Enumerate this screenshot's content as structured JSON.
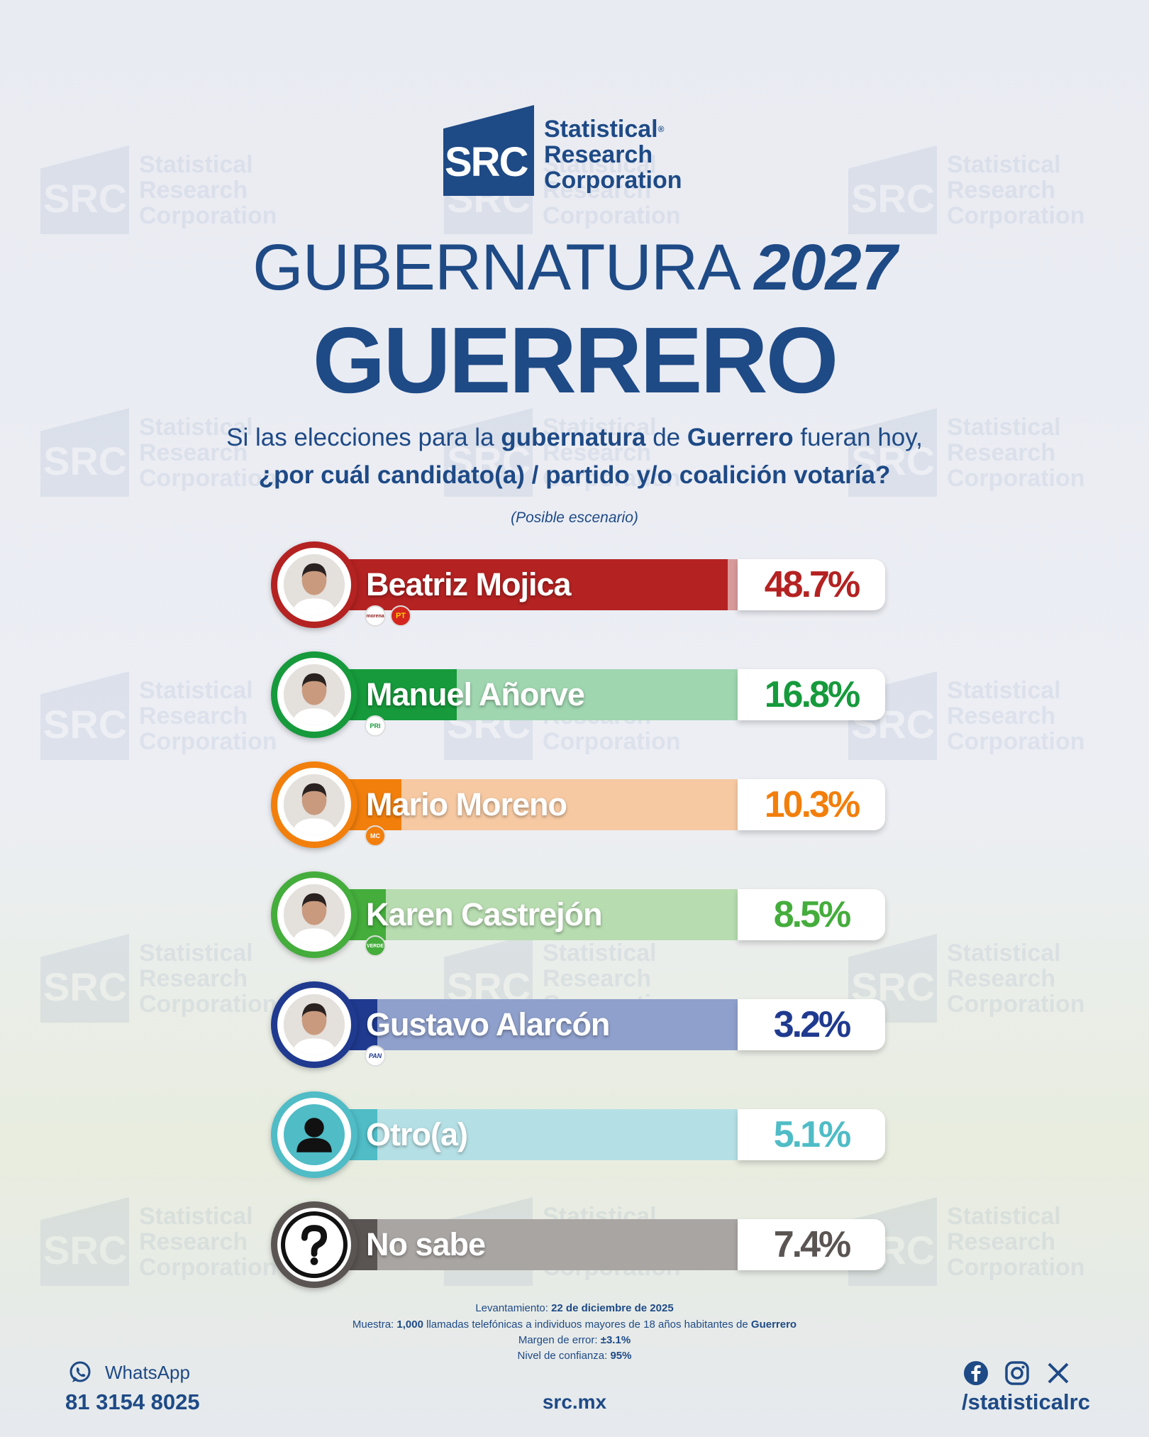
{
  "brand": {
    "logo_text": "SRC",
    "name_line1": "Statistical",
    "name_line2": "Research",
    "name_line3": "Corporation",
    "registered": "®"
  },
  "header": {
    "title_light": "GUBERNATURA",
    "title_year": "2027",
    "state": "GUERRERO"
  },
  "question": {
    "line1_a": "Si las elecciones para la ",
    "line1_b": "gubernatura",
    "line1_c": " de ",
    "line1_d": "Guerrero",
    "line1_e": " fueran hoy,",
    "line2": "¿por cuál candidato(a) / partido y/o coalición votaría?",
    "scenario": "(Posible escenario)"
  },
  "chart_data": {
    "type": "bar",
    "categories": [
      "Beatriz Mojica",
      "Manuel Añorve",
      "Mario Moreno",
      "Karen Castrejón",
      "Gustavo Alarcón",
      "Otro(a)",
      "No sabe"
    ],
    "values": [
      48.7,
      16.8,
      10.3,
      8.5,
      3.2,
      5.1,
      7.4
    ],
    "value_labels": [
      "48.7%",
      "16.8%",
      "10.3%",
      "8.5%",
      "3.2%",
      "5.1%",
      "7.4%"
    ],
    "colors": [
      "#b42222",
      "#169a3c",
      "#f27f0c",
      "#44ad3c",
      "#1f3a8f",
      "#4fbcc6",
      "#5a5553"
    ],
    "light_colors": [
      "#d89a9a",
      "#9fd6b0",
      "#f6c9a2",
      "#b7dcb0",
      "#8fa0cc",
      "#b4e0e5",
      "#a9a5a3"
    ],
    "parties": [
      [
        "morena",
        "PT"
      ],
      [
        "PRI"
      ],
      [
        "MC"
      ],
      [
        "VERDE"
      ],
      [
        "PAN"
      ],
      [],
      []
    ],
    "ylim": [
      0,
      50
    ]
  },
  "footer": {
    "survey_label": "Levantamiento: ",
    "survey_date": "22 de diciembre de 2025",
    "sample_label": "Muestra: ",
    "sample_n": "1,000",
    "sample_text": " llamadas telefónicas a individuos mayores de 18 años habitantes de ",
    "sample_state": "Guerrero",
    "margin_label": "Margen de error: ",
    "margin": "±3.1%",
    "conf_label": "Nivel de confianza: ",
    "conf": "95%",
    "whatsapp_label": "WhatsApp",
    "phone": "81 3154 8025",
    "site": "src.mx",
    "handle": "/statisticalrc"
  }
}
